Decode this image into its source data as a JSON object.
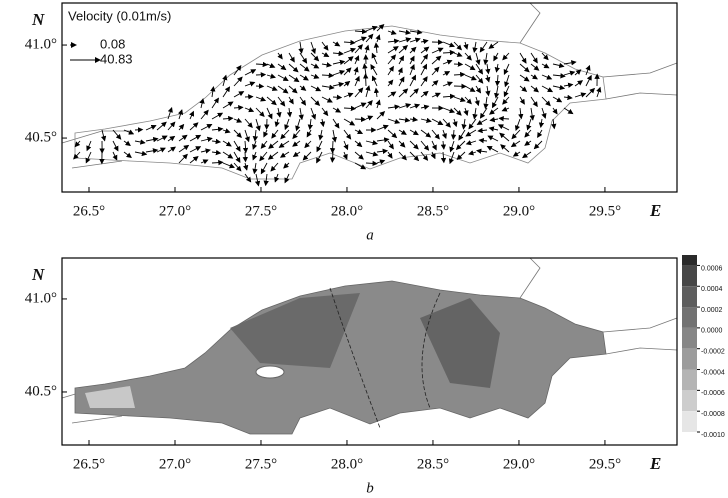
{
  "chart_data": [
    {
      "type": "vector",
      "legend": {
        "title": "Velocity (0.01m/s)",
        "values": [
          0.08,
          40.83
        ]
      },
      "xlim": [
        26.343,
        29.919
      ],
      "xticks": [
        {
          "value": 26.5,
          "label": "26.5°"
        },
        {
          "value": 27.0,
          "label": "27.0°"
        },
        {
          "value": 27.5,
          "label": "27.5°"
        },
        {
          "value": 28.0,
          "label": "28.0°"
        },
        {
          "value": 28.5,
          "label": "28.5°"
        },
        {
          "value": 29.0,
          "label": "29.0°"
        },
        {
          "value": 29.5,
          "label": "29.5°"
        }
      ],
      "ylim": [
        40.21,
        41.226
      ],
      "yticks": [
        {
          "value": 40.5,
          "label": "40.5°"
        },
        {
          "value": 41.0,
          "label": "41.0°"
        }
      ],
      "x_label": "E",
      "y_label": "N",
      "caption": "a"
    },
    {
      "type": "contour",
      "xlim": [
        26.343,
        29.919
      ],
      "xticks": [
        {
          "value": 26.5,
          "label": "26.5°"
        },
        {
          "value": 27.0,
          "label": "27.0°"
        },
        {
          "value": 27.5,
          "label": "27.5°"
        },
        {
          "value": 28.0,
          "label": "28.0°"
        },
        {
          "value": 28.5,
          "label": "28.5°"
        },
        {
          "value": 29.0,
          "label": "29.0°"
        },
        {
          "value": 29.5,
          "label": "29.5°"
        }
      ],
      "ylim": [
        40.215,
        41.22
      ],
      "yticks": [
        {
          "value": 40.5,
          "label": "40.5°"
        },
        {
          "value": 41.0,
          "label": "41.0°"
        }
      ],
      "x_label": "E",
      "y_label": "N",
      "caption": "b",
      "colorbar": {
        "lim": [
          -0.001,
          0.0007
        ],
        "ticks": [
          {
            "value": 0.0006,
            "label": "0.0006"
          },
          {
            "value": 0.0004,
            "label": "0.0004"
          },
          {
            "value": 0.0002,
            "label": "0.0002"
          },
          {
            "value": 0.0,
            "label": "0.0000"
          },
          {
            "value": -0.0002,
            "label": "-0.0002"
          },
          {
            "value": -0.0004,
            "label": "-0.0004"
          },
          {
            "value": -0.0006,
            "label": "-0.0006"
          },
          {
            "value": -0.0008,
            "label": "-0.0008"
          },
          {
            "value": -0.001,
            "label": "-0.0010"
          }
        ],
        "colors": [
          "#2a2a2a",
          "#474747",
          "#5e5e5e",
          "#727272",
          "#868686",
          "#9c9c9c",
          "#b4b4b4",
          "#cdcdcd",
          "#e6e6e6"
        ]
      }
    }
  ]
}
